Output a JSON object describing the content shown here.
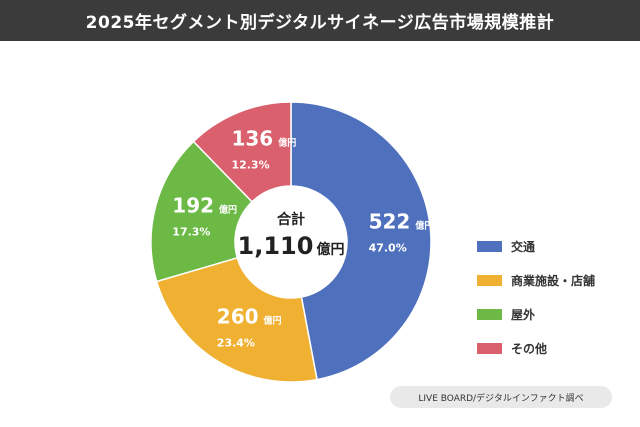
{
  "title": "2025年セグメント別デジタルサイネージ広告市場規模推計",
  "source": "LIVE BOARD/デジタルインファクト調べ",
  "chart_data": {
    "type": "pie",
    "style": "donut",
    "unit": "億円",
    "center_label": "合計",
    "total": "1,110",
    "series": [
      {
        "name": "交通",
        "value": 522,
        "percent": "47.0%",
        "color": "#4f71bd"
      },
      {
        "name": "商業施設・店舗",
        "value": 260,
        "percent": "23.4%",
        "color": "#f0b032"
      },
      {
        "name": "屋外",
        "value": 192,
        "percent": "17.3%",
        "color": "#6cba45"
      },
      {
        "name": "その他",
        "value": 136,
        "percent": "12.3%",
        "color": "#d9606c"
      }
    ],
    "legend_position": "right"
  }
}
